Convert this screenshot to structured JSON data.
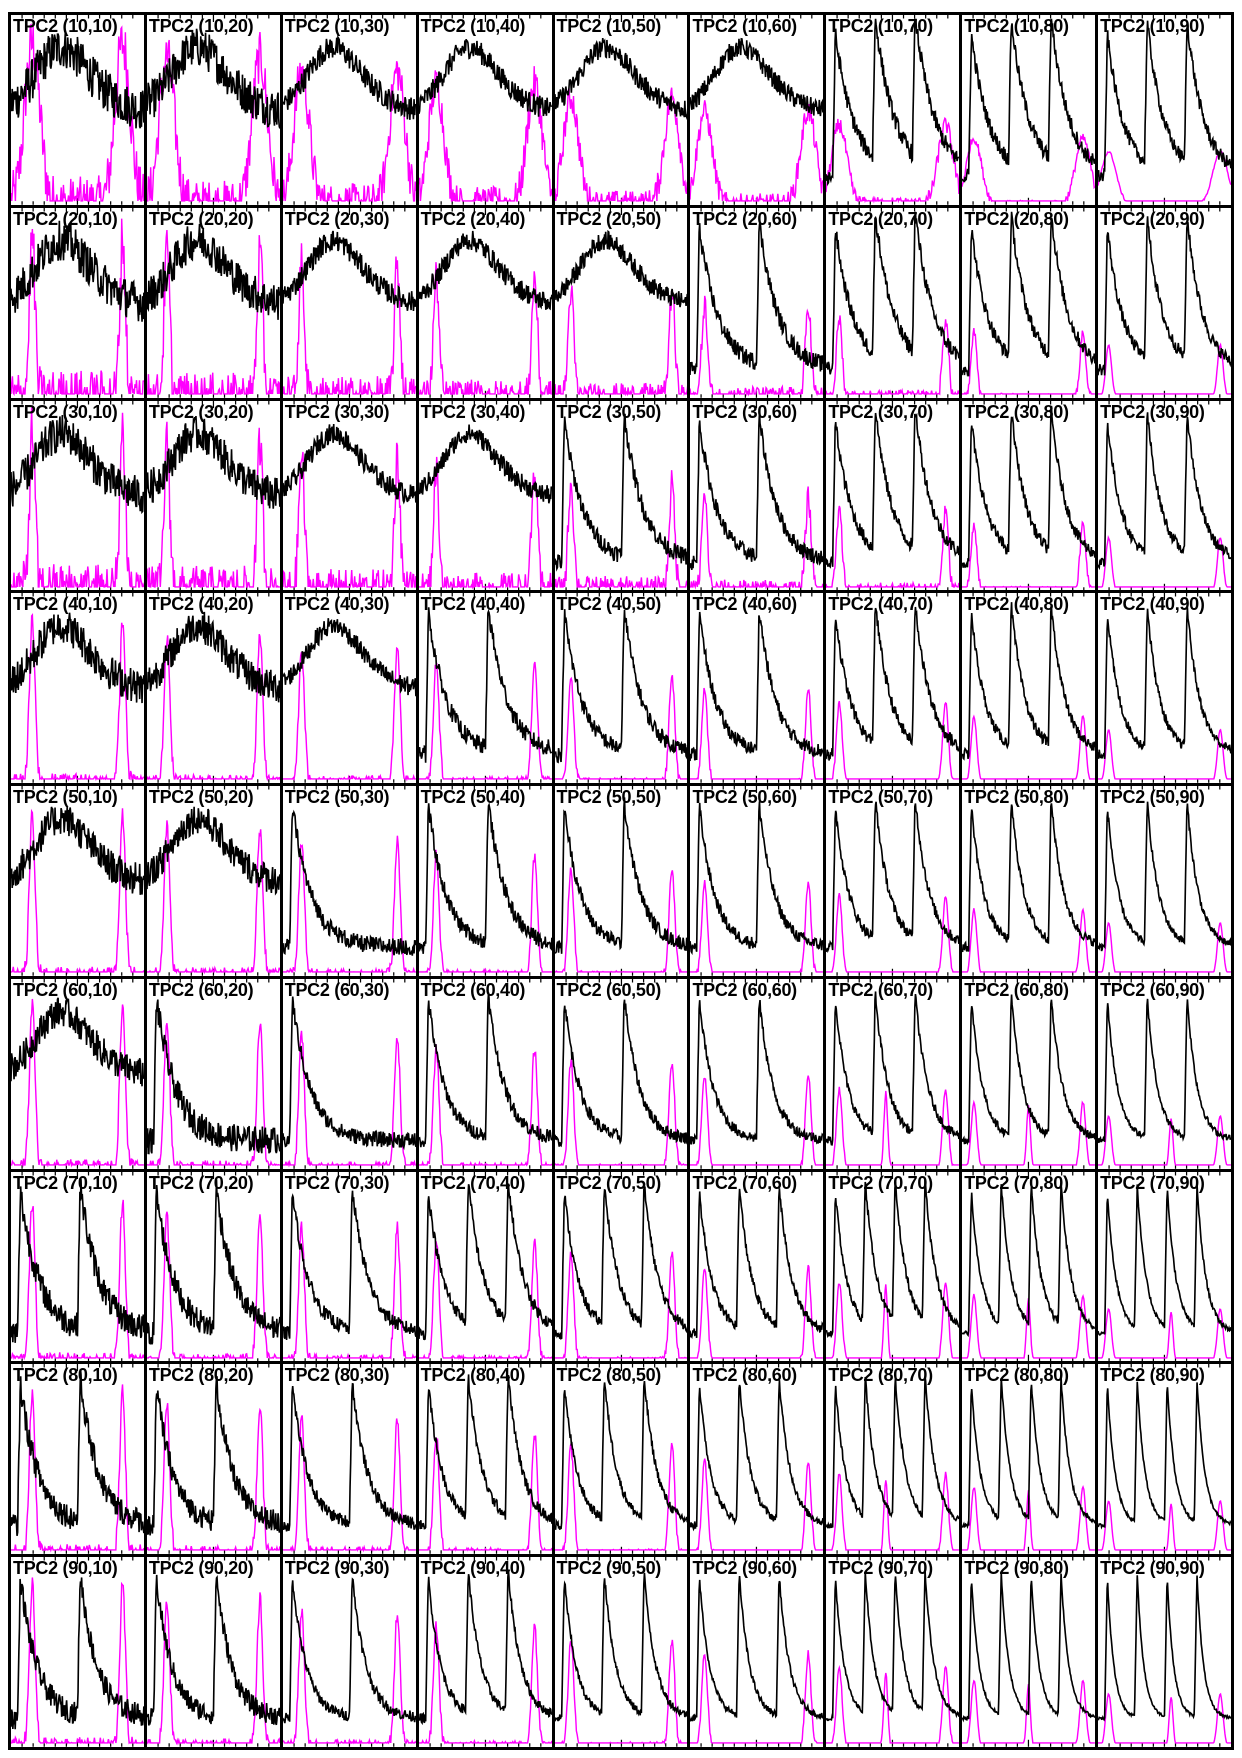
{
  "figure": {
    "colors": {
      "primary_trace": "#000000",
      "secondary_trace": "#ff00ff",
      "frame": "#000000",
      "background": "#ffffff"
    }
  },
  "chart_data": {
    "type": "line",
    "grid": "off",
    "layout": "9x9 panel grid",
    "rows_param": [
      10,
      20,
      30,
      40,
      50,
      60,
      70,
      80,
      90
    ],
    "cols_param": [
      10,
      20,
      30,
      40,
      50,
      60,
      70,
      80,
      90
    ],
    "panel_title_prefix": "TPC2",
    "panels": [
      {
        "title": "TPC2 (10,10)"
      },
      {
        "title": "TPC2 (10,20)"
      },
      {
        "title": "TPC2 (10,30)"
      },
      {
        "title": "TPC2 (10,40)"
      },
      {
        "title": "TPC2 (10,50)"
      },
      {
        "title": "TPC2 (10,60)"
      },
      {
        "title": "TPC2 (10,70)"
      },
      {
        "title": "TPC2 (10,80)"
      },
      {
        "title": "TPC2 (10,90)"
      },
      {
        "title": "TPC2 (20,10)"
      },
      {
        "title": "TPC2 (20,20)"
      },
      {
        "title": "TPC2 (20,30)"
      },
      {
        "title": "TPC2 (20,40)"
      },
      {
        "title": "TPC2 (20,50)"
      },
      {
        "title": "TPC2 (20,60)"
      },
      {
        "title": "TPC2 (20,70)"
      },
      {
        "title": "TPC2 (20,80)"
      },
      {
        "title": "TPC2 (20,90)"
      },
      {
        "title": "TPC2 (30,10)"
      },
      {
        "title": "TPC2 (30,20)"
      },
      {
        "title": "TPC2 (30,30)"
      },
      {
        "title": "TPC2 (30,40)"
      },
      {
        "title": "TPC2 (30,50)"
      },
      {
        "title": "TPC2 (30,60)"
      },
      {
        "title": "TPC2 (30,70)"
      },
      {
        "title": "TPC2 (30,80)"
      },
      {
        "title": "TPC2 (30,90)"
      },
      {
        "title": "TPC2 (40,10)"
      },
      {
        "title": "TPC2 (40,20)"
      },
      {
        "title": "TPC2 (40,30)"
      },
      {
        "title": "TPC2 (40,40)"
      },
      {
        "title": "TPC2 (40,50)"
      },
      {
        "title": "TPC2 (40,60)"
      },
      {
        "title": "TPC2 (40,70)"
      },
      {
        "title": "TPC2 (40,80)"
      },
      {
        "title": "TPC2 (40,90)"
      },
      {
        "title": "TPC2 (50,10)"
      },
      {
        "title": "TPC2 (50,20)"
      },
      {
        "title": "TPC2 (50,30)"
      },
      {
        "title": "TPC2 (50,40)"
      },
      {
        "title": "TPC2 (50,50)"
      },
      {
        "title": "TPC2 (50,60)"
      },
      {
        "title": "TPC2 (50,70)"
      },
      {
        "title": "TPC2 (50,80)"
      },
      {
        "title": "TPC2 (50,90)"
      },
      {
        "title": "TPC2 (60,10)"
      },
      {
        "title": "TPC2 (60,20)"
      },
      {
        "title": "TPC2 (60,30)"
      },
      {
        "title": "TPC2 (60,40)"
      },
      {
        "title": "TPC2 (60,50)"
      },
      {
        "title": "TPC2 (60,60)"
      },
      {
        "title": "TPC2 (60,70)"
      },
      {
        "title": "TPC2 (60,80)"
      },
      {
        "title": "TPC2 (60,90)"
      },
      {
        "title": "TPC2 (70,10)"
      },
      {
        "title": "TPC2 (70,20)"
      },
      {
        "title": "TPC2 (70,30)"
      },
      {
        "title": "TPC2 (70,40)"
      },
      {
        "title": "TPC2 (70,50)"
      },
      {
        "title": "TPC2 (70,60)"
      },
      {
        "title": "TPC2 (70,70)"
      },
      {
        "title": "TPC2 (70,80)"
      },
      {
        "title": "TPC2 (70,90)"
      },
      {
        "title": "TPC2 (80,10)"
      },
      {
        "title": "TPC2 (80,20)"
      },
      {
        "title": "TPC2 (80,30)"
      },
      {
        "title": "TPC2 (80,40)"
      },
      {
        "title": "TPC2 (80,50)"
      },
      {
        "title": "TPC2 (80,60)"
      },
      {
        "title": "TPC2 (80,70)"
      },
      {
        "title": "TPC2 (80,80)"
      },
      {
        "title": "TPC2 (80,90)"
      },
      {
        "title": "TPC2 (90,10)"
      },
      {
        "title": "TPC2 (90,20)"
      },
      {
        "title": "TPC2 (90,30)"
      },
      {
        "title": "TPC2 (90,40)"
      },
      {
        "title": "TPC2 (90,50)"
      },
      {
        "title": "TPC2 (90,60)"
      },
      {
        "title": "TPC2 (90,70)"
      },
      {
        "title": "TPC2 (90,80)"
      },
      {
        "title": "TPC2 (90,90)"
      }
    ]
  }
}
